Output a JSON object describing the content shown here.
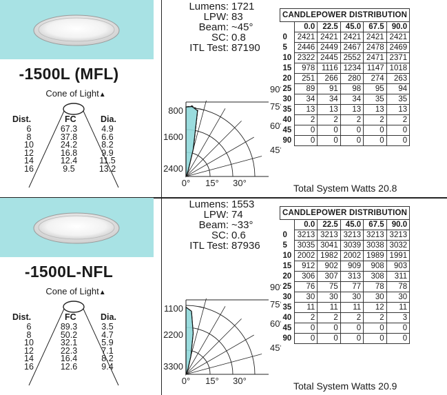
{
  "panels": [
    {
      "model": "-1500L (MFL)",
      "cone_title": "Cone of Light",
      "cone_headers": [
        "Dist.",
        "FC",
        "Dia."
      ],
      "cone_rows": [
        [
          "6",
          "67.3",
          "4.9"
        ],
        [
          "8",
          "37.8",
          "6.6"
        ],
        [
          "10",
          "24.2",
          "8.2"
        ],
        [
          "12",
          "16.8",
          "9.9"
        ],
        [
          "14",
          "12.4",
          "11.5"
        ],
        [
          "16",
          "9.5",
          "13.2"
        ]
      ],
      "metrics": {
        "lumens_label": "Lumens:",
        "lumens": "1721",
        "lpw_label": "LPW:",
        "lpw": "83",
        "beam_label": "Beam:",
        "beam": "~45°",
        "sc_label": "SC:",
        "sc": "0.8",
        "itl_label": "ITL Test:",
        "itl": "87190"
      },
      "polar": {
        "y_ticks": [
          "800",
          "1600",
          "2400"
        ],
        "angle_labels": [
          "90°",
          "75°",
          "60°",
          "45°"
        ],
        "x_ticks": [
          "0°",
          "15°",
          "30°"
        ]
      },
      "table": {
        "title": "CANDLEPOWER DISTRIBUTION",
        "col_headers": [
          "0.0",
          "22.5",
          "45.0",
          "67.5",
          "90.0"
        ],
        "rows": [
          {
            "angle": "0",
            "vals": [
              "2421",
              "2421",
              "2421",
              "2421",
              "2421"
            ]
          },
          {
            "angle": "5",
            "vals": [
              "2446",
              "2449",
              "2467",
              "2478",
              "2469"
            ]
          },
          {
            "angle": "10",
            "vals": [
              "2322",
              "2445",
              "2552",
              "2471",
              "2371"
            ]
          },
          {
            "angle": "15",
            "vals": [
              "978",
              "1116",
              "1234",
              "1147",
              "1018"
            ]
          },
          {
            "angle": "20",
            "vals": [
              "251",
              "266",
              "280",
              "274",
              "263"
            ]
          },
          {
            "angle": "25",
            "vals": [
              "89",
              "91",
              "98",
              "95",
              "94"
            ]
          },
          {
            "angle": "30",
            "vals": [
              "34",
              "34",
              "34",
              "35",
              "35"
            ]
          },
          {
            "angle": "35",
            "vals": [
              "13",
              "13",
              "13",
              "13",
              "13"
            ]
          },
          {
            "angle": "40",
            "vals": [
              "2",
              "2",
              "2",
              "2",
              "2"
            ]
          },
          {
            "angle": "45",
            "vals": [
              "0",
              "0",
              "0",
              "0",
              "0"
            ]
          },
          {
            "angle": "90",
            "vals": [
              "0",
              "0",
              "0",
              "0",
              "0"
            ]
          }
        ]
      },
      "watts": "Total System Watts 20.8"
    },
    {
      "model": "-1500L-NFL",
      "cone_title": "Cone of Light",
      "cone_headers": [
        "Dist.",
        "FC",
        "Dia."
      ],
      "cone_rows": [
        [
          "6",
          "89.3",
          "3.5"
        ],
        [
          "8",
          "50.2",
          "4.7"
        ],
        [
          "10",
          "32.1",
          "5.9"
        ],
        [
          "12",
          "22.3",
          "7.1"
        ],
        [
          "14",
          "16.4",
          "8.2"
        ],
        [
          "16",
          "12.6",
          "9.4"
        ]
      ],
      "metrics": {
        "lumens_label": "Lumens:",
        "lumens": "1553",
        "lpw_label": "LPW:",
        "lpw": "74",
        "beam_label": "Beam:",
        "beam": "~33°",
        "sc_label": "SC:",
        "sc": "0.6",
        "itl_label": "ITL Test:",
        "itl": "87936"
      },
      "polar": {
        "y_ticks": [
          "1100",
          "2200",
          "3300"
        ],
        "angle_labels": [
          "90°",
          "75°",
          "60°",
          "45°"
        ],
        "x_ticks": [
          "0°",
          "15°",
          "30°"
        ]
      },
      "table": {
        "title": "CANDLEPOWER DISTRIBUTION",
        "col_headers": [
          "0.0",
          "22.5",
          "45.0",
          "67.5",
          "90.0"
        ],
        "rows": [
          {
            "angle": "0",
            "vals": [
              "3213",
              "3213",
              "3213",
              "3213",
              "3213"
            ]
          },
          {
            "angle": "5",
            "vals": [
              "3035",
              "3041",
              "3039",
              "3038",
              "3032"
            ]
          },
          {
            "angle": "10",
            "vals": [
              "2002",
              "1982",
              "2002",
              "1989",
              "1991"
            ]
          },
          {
            "angle": "15",
            "vals": [
              "912",
              "902",
              "909",
              "908",
              "903"
            ]
          },
          {
            "angle": "20",
            "vals": [
              "306",
              "307",
              "313",
              "308",
              "311"
            ]
          },
          {
            "angle": "25",
            "vals": [
              "76",
              "75",
              "77",
              "78",
              "78"
            ]
          },
          {
            "angle": "30",
            "vals": [
              "30",
              "30",
              "30",
              "30",
              "30"
            ]
          },
          {
            "angle": "35",
            "vals": [
              "11",
              "11",
              "11",
              "12",
              "11"
            ]
          },
          {
            "angle": "40",
            "vals": [
              "2",
              "2",
              "2",
              "2",
              "3"
            ]
          },
          {
            "angle": "45",
            "vals": [
              "0",
              "0",
              "0",
              "0",
              "0"
            ]
          },
          {
            "angle": "90",
            "vals": [
              "0",
              "0",
              "0",
              "0",
              "0"
            ]
          }
        ]
      },
      "watts": "Total System Watts 20.9"
    }
  ],
  "colors": {
    "accent": "#a8e2e4",
    "curve_fill": "#8fd8da",
    "line": "#222222"
  },
  "icons": {
    "cone_marker": "triangle-up-icon",
    "fixture": "downlight-photo"
  }
}
